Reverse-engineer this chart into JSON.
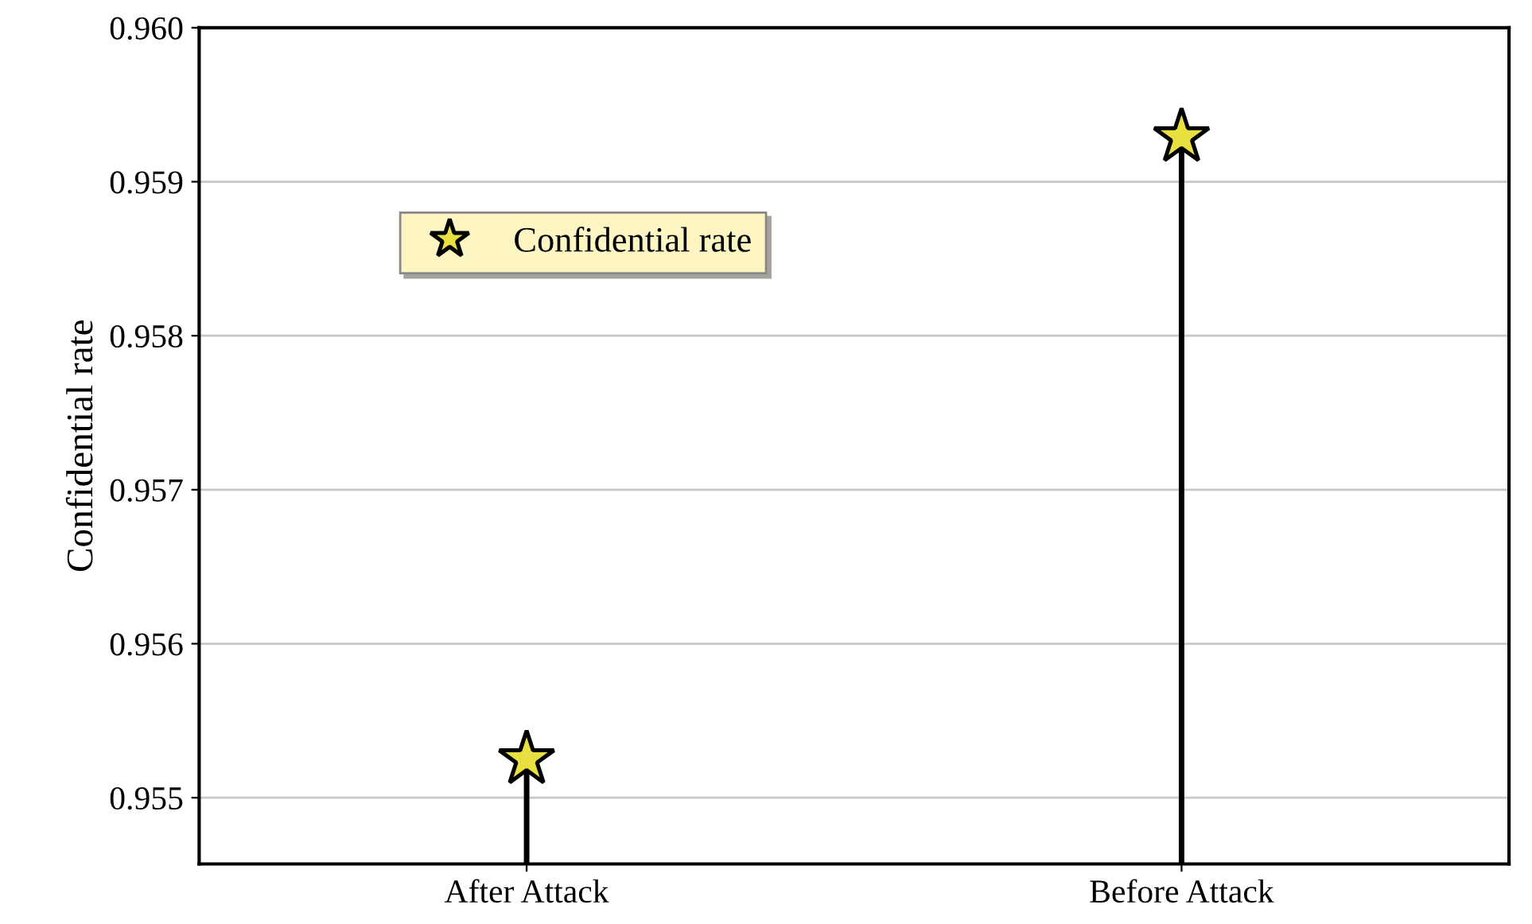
{
  "chart_data": {
    "type": "lollipop",
    "ylabel": "Confidential rate",
    "categories": [
      "After Attack",
      "Before Attack"
    ],
    "series": [
      {
        "name": "Confidential rate",
        "color": "#e8e040",
        "values": [
          0.95525,
          0.95929
        ]
      }
    ],
    "ylim": [
      0.95457,
      0.96
    ],
    "yticks": [
      {
        "value": 0.955,
        "label": "0.955"
      },
      {
        "value": 0.956,
        "label": "0.956"
      },
      {
        "value": 0.957,
        "label": "0.957"
      },
      {
        "value": 0.958,
        "label": "0.958"
      },
      {
        "value": 0.959,
        "label": "0.959"
      },
      {
        "value": 0.96,
        "label": "0.960"
      }
    ],
    "grid": "y",
    "legend": "top left",
    "marker": "star"
  }
}
